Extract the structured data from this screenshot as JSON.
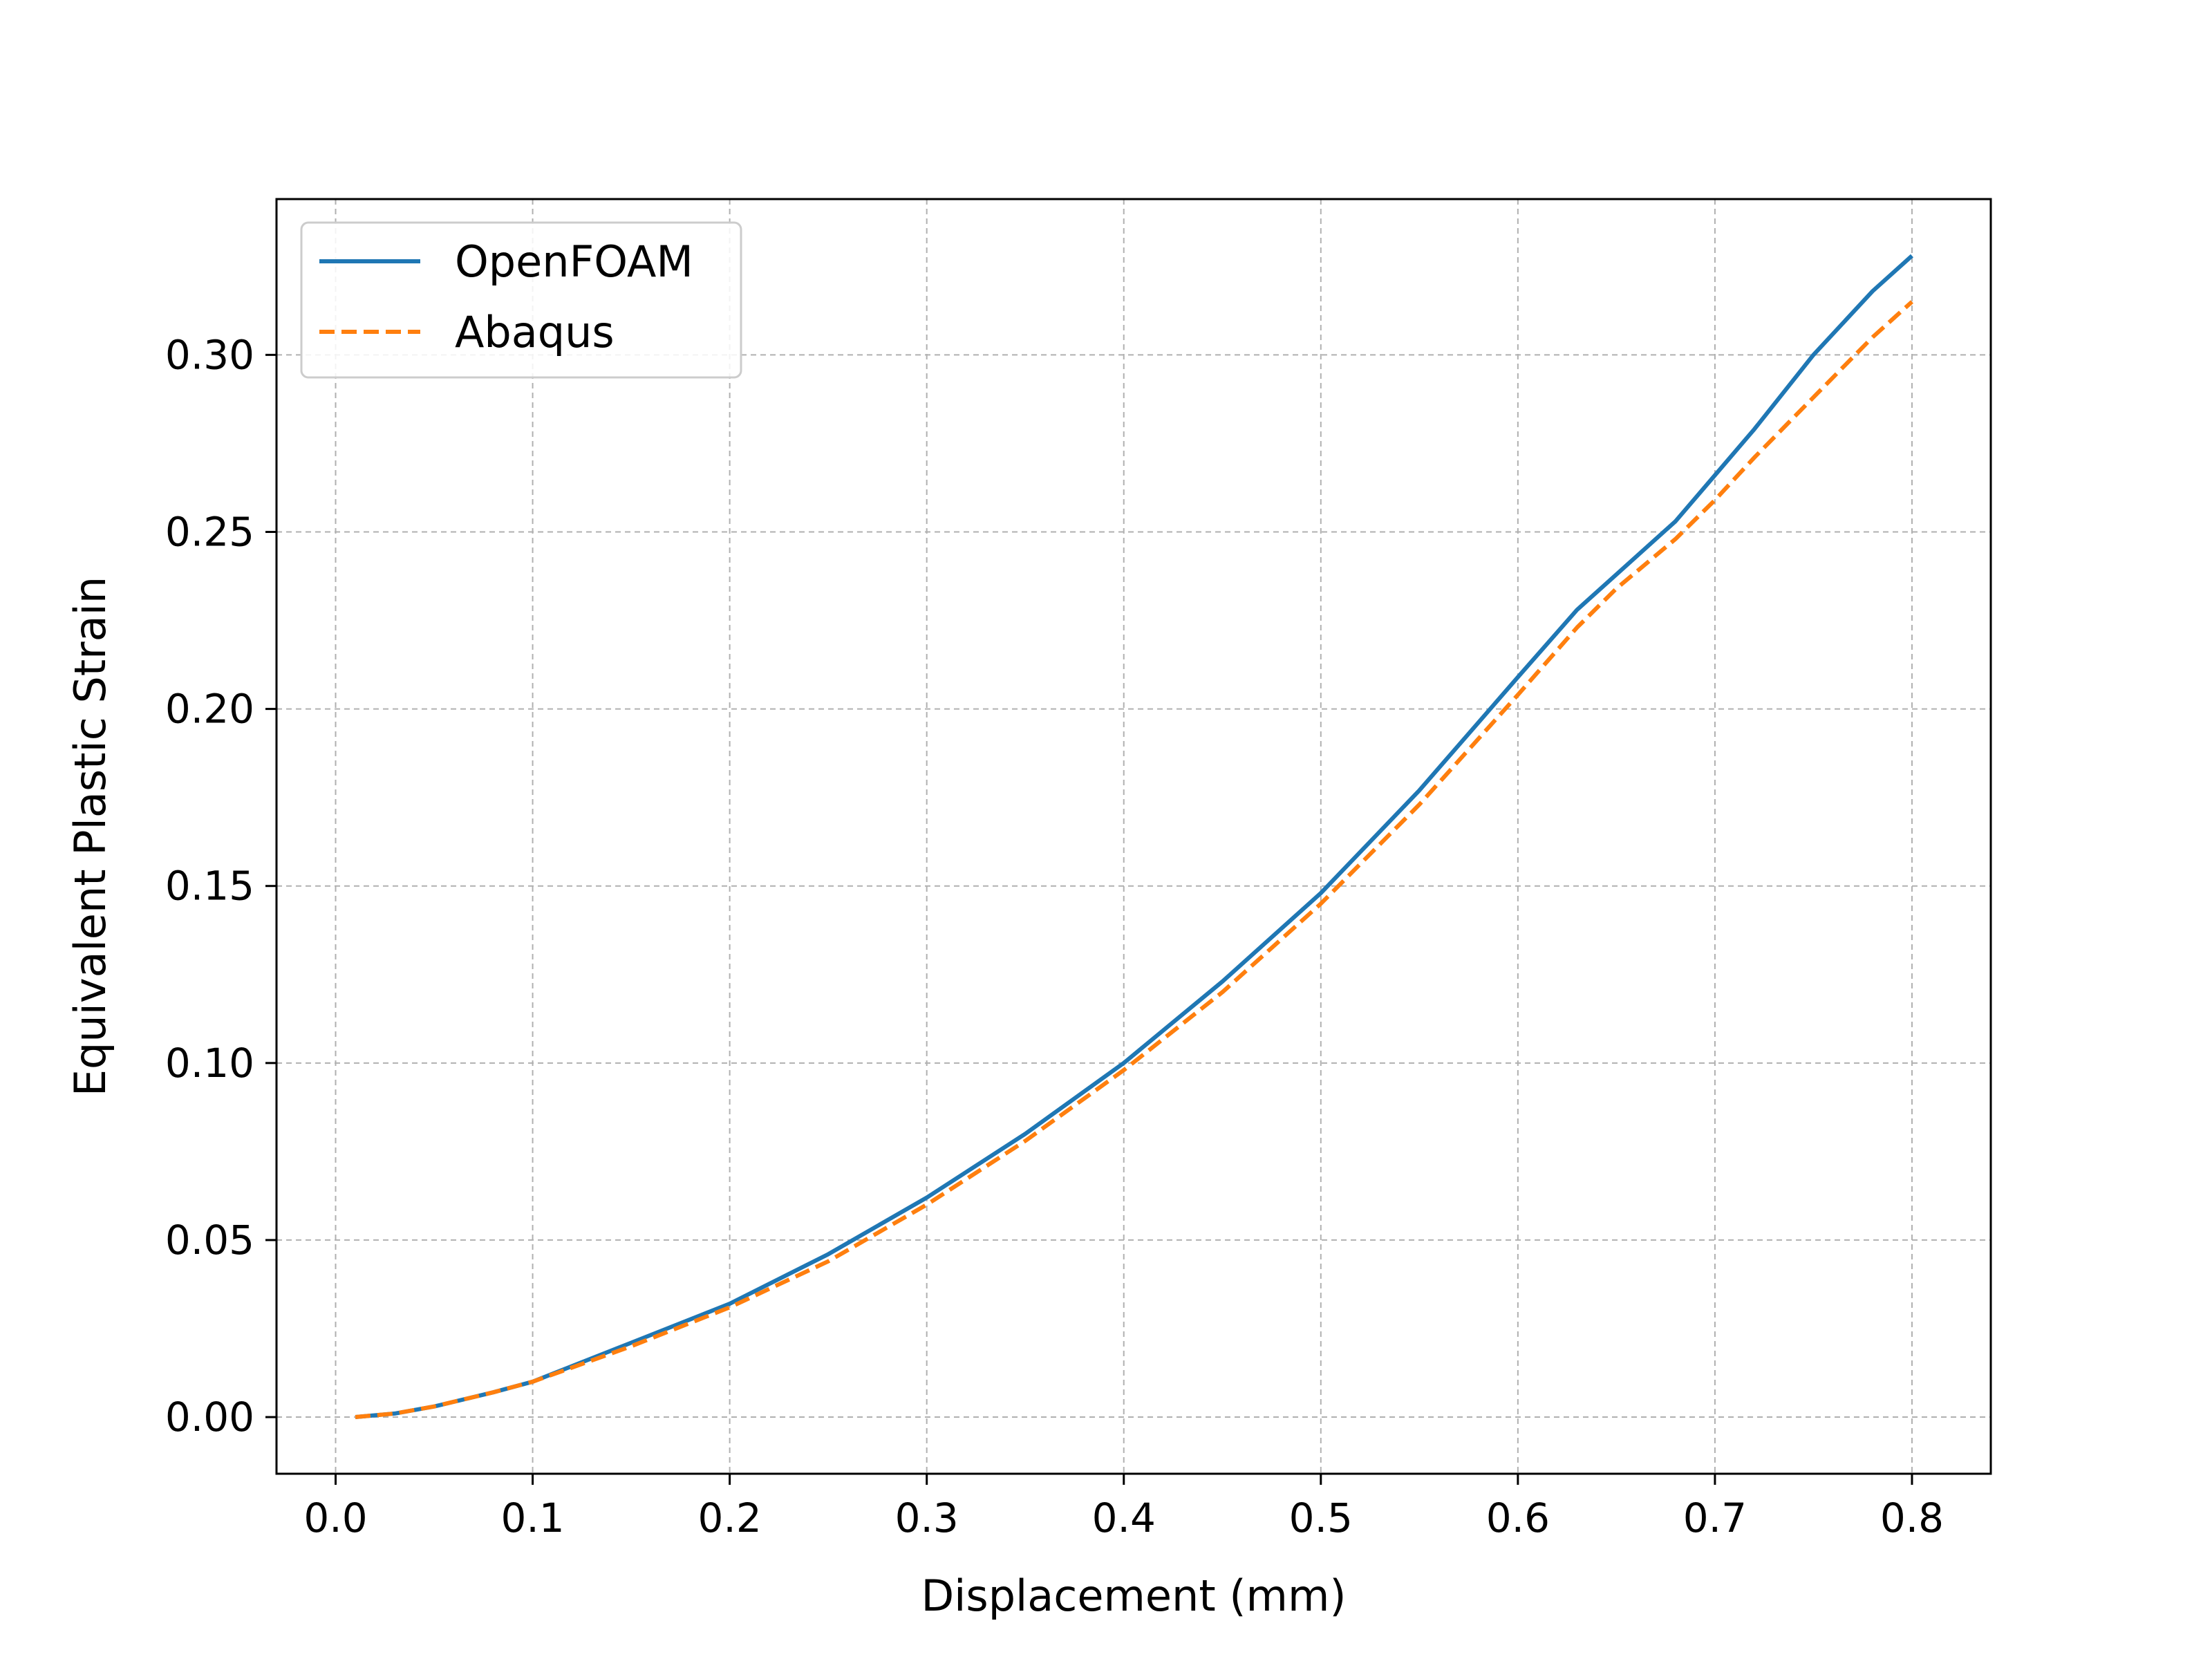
{
  "chart_data": {
    "type": "line",
    "title": "",
    "xlabel": "Displacement (mm)",
    "ylabel": "Equivalent Plastic Strain",
    "xlim": [
      -0.03,
      0.84
    ],
    "ylim": [
      -0.016,
      0.344
    ],
    "xticks": [
      0.0,
      0.1,
      0.2,
      0.3,
      0.4,
      0.5,
      0.6,
      0.7,
      0.8
    ],
    "xtick_labels": [
      "0.0",
      "0.1",
      "0.2",
      "0.3",
      "0.4",
      "0.5",
      "0.6",
      "0.7",
      "0.8"
    ],
    "yticks": [
      0.0,
      0.05,
      0.1,
      0.15,
      0.2,
      0.25,
      0.3
    ],
    "ytick_labels": [
      "0.00",
      "0.05",
      "0.10",
      "0.15",
      "0.20",
      "0.25",
      "0.30"
    ],
    "grid": true,
    "legend_position": "top-left",
    "series": [
      {
        "name": "OpenFOAM",
        "color": "#1f77b4",
        "style": "solid",
        "x": [
          0.01,
          0.03,
          0.05,
          0.08,
          0.1,
          0.15,
          0.2,
          0.25,
          0.3,
          0.35,
          0.4,
          0.45,
          0.5,
          0.55,
          0.6,
          0.63,
          0.65,
          0.68,
          0.7,
          0.72,
          0.75,
          0.78,
          0.8
        ],
        "y": [
          0.0,
          0.001,
          0.003,
          0.007,
          0.01,
          0.021,
          0.032,
          0.046,
          0.062,
          0.08,
          0.1,
          0.123,
          0.148,
          0.177,
          0.209,
          0.228,
          0.238,
          0.253,
          0.266,
          0.279,
          0.3,
          0.318,
          0.328
        ]
      },
      {
        "name": "Abaqus",
        "color": "#ff7f0e",
        "style": "dashed",
        "x": [
          0.01,
          0.03,
          0.05,
          0.08,
          0.1,
          0.15,
          0.2,
          0.25,
          0.3,
          0.35,
          0.4,
          0.45,
          0.5,
          0.55,
          0.6,
          0.63,
          0.65,
          0.68,
          0.7,
          0.72,
          0.75,
          0.78,
          0.8
        ],
        "y": [
          0.0,
          0.001,
          0.003,
          0.007,
          0.01,
          0.02,
          0.031,
          0.044,
          0.06,
          0.078,
          0.098,
          0.12,
          0.145,
          0.173,
          0.204,
          0.223,
          0.234,
          0.248,
          0.259,
          0.271,
          0.288,
          0.305,
          0.315
        ]
      }
    ]
  }
}
